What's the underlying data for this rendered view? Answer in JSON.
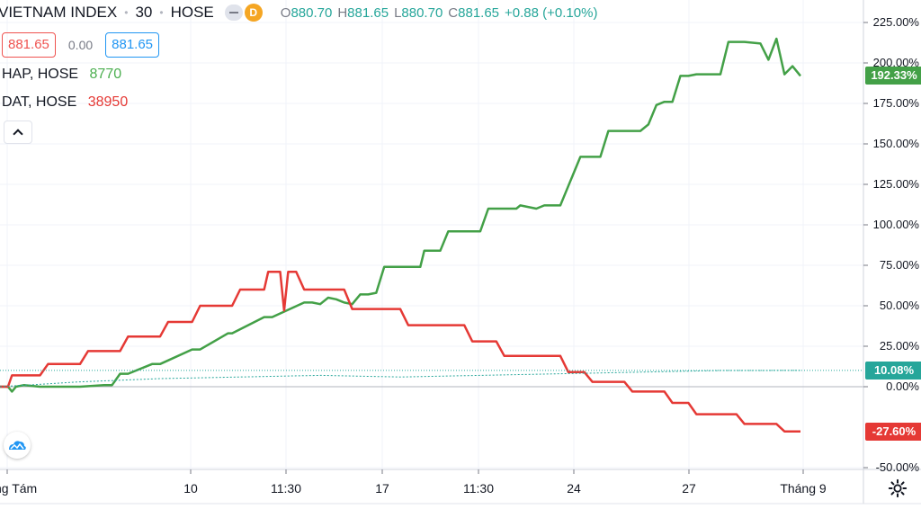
{
  "header": {
    "symbol": "VIETNAM INDEX",
    "interval": "30",
    "exchange": "HOSE",
    "badge": "D",
    "ohlc": {
      "o_label": "O",
      "o": "880.70",
      "h_label": "H",
      "h": "881.65",
      "l_label": "L",
      "l": "880.70",
      "c_label": "C",
      "c": "881.65",
      "change": "+0.88 (+0.10%)"
    },
    "sell_price": "881.65",
    "spread": "0.00",
    "buy_price": "881.65"
  },
  "compare": [
    {
      "name": "HAP, HOSE",
      "value": "8770",
      "color": "#4caf50"
    },
    {
      "name": "DAT, HOSE",
      "value": "38950",
      "color": "#e53935"
    }
  ],
  "icons": {
    "collapse": "chevron-up-icon",
    "logo": "tradingview-cloud-icon",
    "settings": "gear-icon"
  },
  "chart_data": {
    "type": "line",
    "y_unit": "%",
    "ylim": [
      -50,
      225
    ],
    "y_ticks": [
      "225.00%",
      "200.00%",
      "175.00%",
      "150.00%",
      "125.00%",
      "100.00%",
      "75.00%",
      "50.00%",
      "25.00%",
      "0.00%",
      "-50.00%"
    ],
    "x_ticks": [
      "ng Tám",
      "10",
      "11:30",
      "17",
      "11:30",
      "24",
      "27",
      "Tháng 9"
    ],
    "xlim": [
      0,
      100
    ],
    "grid": true,
    "series": [
      {
        "name": "HAP, HOSE",
        "color": "#43a047",
        "last_label": "192.33%",
        "x": [
          0,
          1,
          1.5,
          2,
          3,
          5,
          8,
          10,
          13,
          14,
          15,
          16,
          19,
          20,
          24,
          25,
          28.5,
          29,
          33,
          34,
          38,
          39,
          40,
          41,
          42,
          43,
          44,
          45,
          46,
          47,
          48,
          52.5,
          53,
          55,
          56,
          60,
          61,
          64.5,
          65,
          67,
          68,
          70,
          71,
          72.5,
          73,
          74,
          75,
          76,
          78,
          79,
          80,
          81,
          82,
          83,
          84,
          85,
          86,
          87,
          90,
          91,
          93,
          95,
          96,
          97,
          98,
          99,
          100
        ],
        "y": [
          0,
          0,
          -3,
          0,
          1,
          0,
          0,
          0,
          1,
          1,
          8,
          8,
          14,
          14,
          23,
          23,
          33,
          33,
          43,
          43,
          52,
          52,
          51,
          55,
          54,
          52,
          51,
          57,
          57,
          58,
          74,
          74,
          84,
          84,
          96,
          96,
          110,
          110,
          112,
          110,
          112,
          112,
          124,
          142,
          142,
          142,
          142,
          158,
          158,
          158,
          158,
          162,
          174,
          176,
          176,
          192,
          192,
          193,
          193,
          213,
          213,
          212,
          202,
          215,
          193,
          198,
          192
        ]
      },
      {
        "name": "DAT, HOSE",
        "color": "#e53935",
        "last_label": "-27.60%",
        "x": [
          0,
          1,
          1.5,
          5,
          6,
          10,
          11,
          15,
          16,
          20,
          21,
          24,
          25,
          29,
          30,
          33,
          33.5,
          35,
          35.5,
          36,
          37,
          38,
          43,
          44,
          50,
          51,
          58,
          59,
          62,
          63,
          70,
          71,
          73,
          74,
          78,
          79,
          83,
          84,
          86,
          87,
          92,
          93,
          97,
          98,
          100
        ],
        "y": [
          0,
          0,
          7,
          7,
          14,
          14,
          22,
          22,
          31,
          31,
          40,
          40,
          50,
          50,
          60,
          60,
          71,
          71,
          47,
          71,
          71,
          60,
          60,
          48,
          48,
          38,
          38,
          28,
          28,
          19,
          19,
          9,
          9,
          3,
          3,
          -3,
          -3,
          -10,
          -10,
          -17,
          -17,
          -23,
          -23,
          -27.6,
          -27.6
        ]
      },
      {
        "name": "VIETNAM INDEX",
        "color": "#26a69a",
        "last_label": "10.08%",
        "x": [
          0,
          10,
          20,
          30,
          40,
          50,
          60,
          70,
          80,
          90,
          100
        ],
        "y": [
          0,
          3,
          5,
          6,
          7,
          6,
          7,
          8,
          9,
          10,
          10.08
        ]
      }
    ]
  }
}
